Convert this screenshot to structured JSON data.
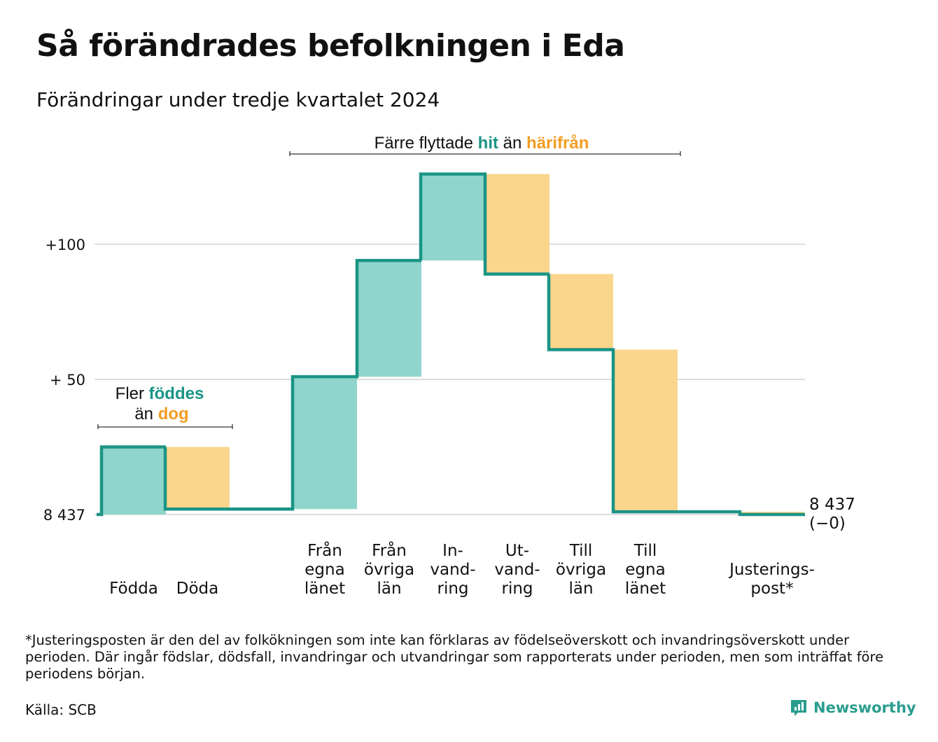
{
  "title": "Så förändrades befolkningen i Eda",
  "subtitle": "Förändringar under tredje kvartalet 2024",
  "colors": {
    "in": "#8fd5cc",
    "out": "#fad58c",
    "line": "#1a9485",
    "highlight_in": "#1a9485",
    "highlight_out": "#f29d22",
    "grid": "#dddddd"
  },
  "annotations": {
    "births": {
      "line1": "Fler",
      "hl1": "föddes",
      "line2": "än",
      "hl2": "dog"
    },
    "migration": {
      "pre": "Färre flyttade",
      "hl1": "hit",
      "mid": "än",
      "hl2": "härifrån"
    }
  },
  "chart_data": {
    "type": "waterfall",
    "baseline_label": "8 437",
    "ylim": [
      0,
      128
    ],
    "yticks": [
      {
        "value": 0,
        "label": "8 437"
      },
      {
        "value": 50,
        "label": "+ 50"
      },
      {
        "value": 100,
        "label": "+100"
      }
    ],
    "steps": [
      {
        "label": [
          "Födda"
        ],
        "value": 25,
        "kind": "in"
      },
      {
        "label": [
          "Döda"
        ],
        "value": -23,
        "kind": "out"
      },
      {
        "label": [
          "Från",
          "egna",
          "länet"
        ],
        "value": 49,
        "kind": "in"
      },
      {
        "label": [
          "Från",
          "övriga",
          "län"
        ],
        "value": 43,
        "kind": "in"
      },
      {
        "label": [
          "In-",
          "vand-",
          "ring"
        ],
        "value": 32,
        "kind": "in"
      },
      {
        "label": [
          "Ut-",
          "vand-",
          "ring"
        ],
        "value": -37,
        "kind": "out"
      },
      {
        "label": [
          "Till",
          "övriga",
          "län"
        ],
        "value": -28,
        "kind": "out"
      },
      {
        "label": [
          "Till",
          "egna",
          "länet"
        ],
        "value": -60,
        "kind": "out"
      },
      {
        "label": [
          "Justerings-",
          "post*"
        ],
        "value": -1,
        "kind": "out"
      }
    ],
    "end_label": [
      "8 437",
      "(−0)"
    ]
  },
  "footnote": "*Justeringsposten är den del av folkökningen som inte kan förklaras av födelseöverskott och invandringsöverskott under perioden. Där ingår födslar, dödsfall, invandringar och utvandringar som rapporterats under perioden, men som inträffat före periodens början.",
  "source": "Källa: SCB",
  "brand": "Newsworthy"
}
